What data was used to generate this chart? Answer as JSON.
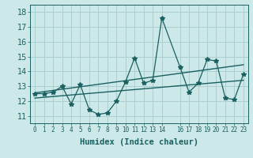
{
  "xlabel": "Humidex (Indice chaleur)",
  "ylabel": "",
  "bg_color": "#cce8e8",
  "line_color": "#1a6060",
  "grid_color": "#aacece",
  "xlim": [
    -0.5,
    23.5
  ],
  "ylim": [
    10.5,
    18.5
  ],
  "yticks": [
    11,
    12,
    13,
    14,
    15,
    16,
    17,
    18
  ],
  "xticks": [
    0,
    1,
    2,
    3,
    4,
    5,
    6,
    7,
    8,
    9,
    10,
    11,
    12,
    13,
    14,
    16,
    17,
    18,
    19,
    20,
    21,
    22,
    23
  ],
  "xtick_labels": [
    "0",
    "1",
    "2",
    "3",
    "4",
    "5",
    "6",
    "7",
    "8",
    "9",
    "10",
    "11",
    "12",
    "13",
    "14",
    "16",
    "17",
    "18",
    "19",
    "20",
    "21",
    "22",
    "23"
  ],
  "data_x": [
    0,
    1,
    2,
    3,
    4,
    5,
    6,
    7,
    8,
    9,
    10,
    11,
    12,
    13,
    14,
    16,
    17,
    18,
    19,
    20,
    21,
    22,
    23
  ],
  "data_y": [
    12.5,
    12.5,
    12.6,
    13.0,
    11.8,
    13.1,
    11.4,
    11.1,
    11.2,
    12.0,
    13.3,
    14.9,
    13.2,
    13.4,
    17.6,
    14.3,
    12.6,
    13.2,
    14.8,
    14.7,
    12.2,
    12.1,
    13.8
  ],
  "trend1_x": [
    0,
    23
  ],
  "trend1_y": [
    12.55,
    14.45
  ],
  "trend2_x": [
    0,
    23
  ],
  "trend2_y": [
    12.2,
    13.4
  ],
  "marker": "*",
  "marker_size": 4,
  "font_size": 7,
  "xlabel_fontsize": 7.5
}
